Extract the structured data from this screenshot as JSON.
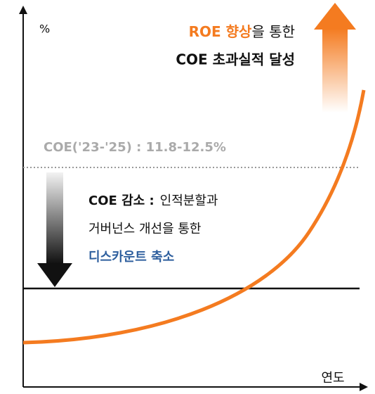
{
  "axes": {
    "y_label": "%",
    "x_label": "연도"
  },
  "headline": {
    "highlight": "ROE 향상",
    "rest": "을 통한",
    "line2": "COE 초과실적 달성"
  },
  "coe_range": "COE('23-'25) : 11.8-12.5%",
  "note": {
    "bold": "COE 감소 :",
    "line1": "인적분할과",
    "line2": "거버넌스 개선을 통한",
    "highlight": "디스카운트 축소"
  }
}
